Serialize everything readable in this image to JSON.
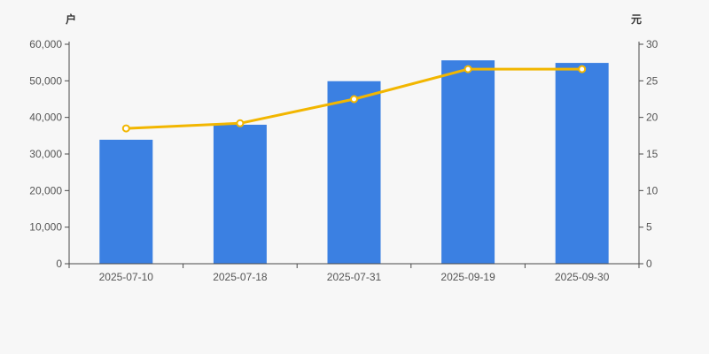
{
  "background": "#f7f7f7",
  "styles": {
    "axis_color": "#4a4a4a",
    "tick_label_color": "#555555",
    "unit_label_color": "#333333",
    "bar_color": "#3b80e2",
    "line_color": "#f2b600",
    "marker_fill": "#ffffff"
  },
  "chart_data": {
    "type": "bar+line dual-axis",
    "title": "",
    "grid": false,
    "legend_position": "none",
    "categories": [
      "2025-07-10",
      "2025-07-18",
      "2025-07-31",
      "2025-09-19",
      "2025-09-30"
    ],
    "series": [
      {
        "name": "bar-series-households",
        "type": "bar",
        "axis": "left",
        "color": "#3b80e2",
        "values": [
          33900,
          38000,
          49900,
          55600,
          54900
        ]
      },
      {
        "name": "line-series-price",
        "type": "line",
        "axis": "right",
        "color": "#f2b600",
        "marker": "hollow-circle",
        "values": [
          18.5,
          19.2,
          22.5,
          26.6,
          26.6
        ]
      }
    ],
    "axes": {
      "left": {
        "unit": "户",
        "min": 0,
        "max": 60000,
        "step": 10000,
        "tick_labels": [
          "0",
          "10,000",
          "20,000",
          "30,000",
          "40,000",
          "50,000",
          "60,000"
        ]
      },
      "right": {
        "unit": "元",
        "min": 0,
        "max": 30,
        "step": 5,
        "tick_labels": [
          "0",
          "5",
          "10",
          "15",
          "20",
          "25",
          "30"
        ]
      }
    }
  }
}
